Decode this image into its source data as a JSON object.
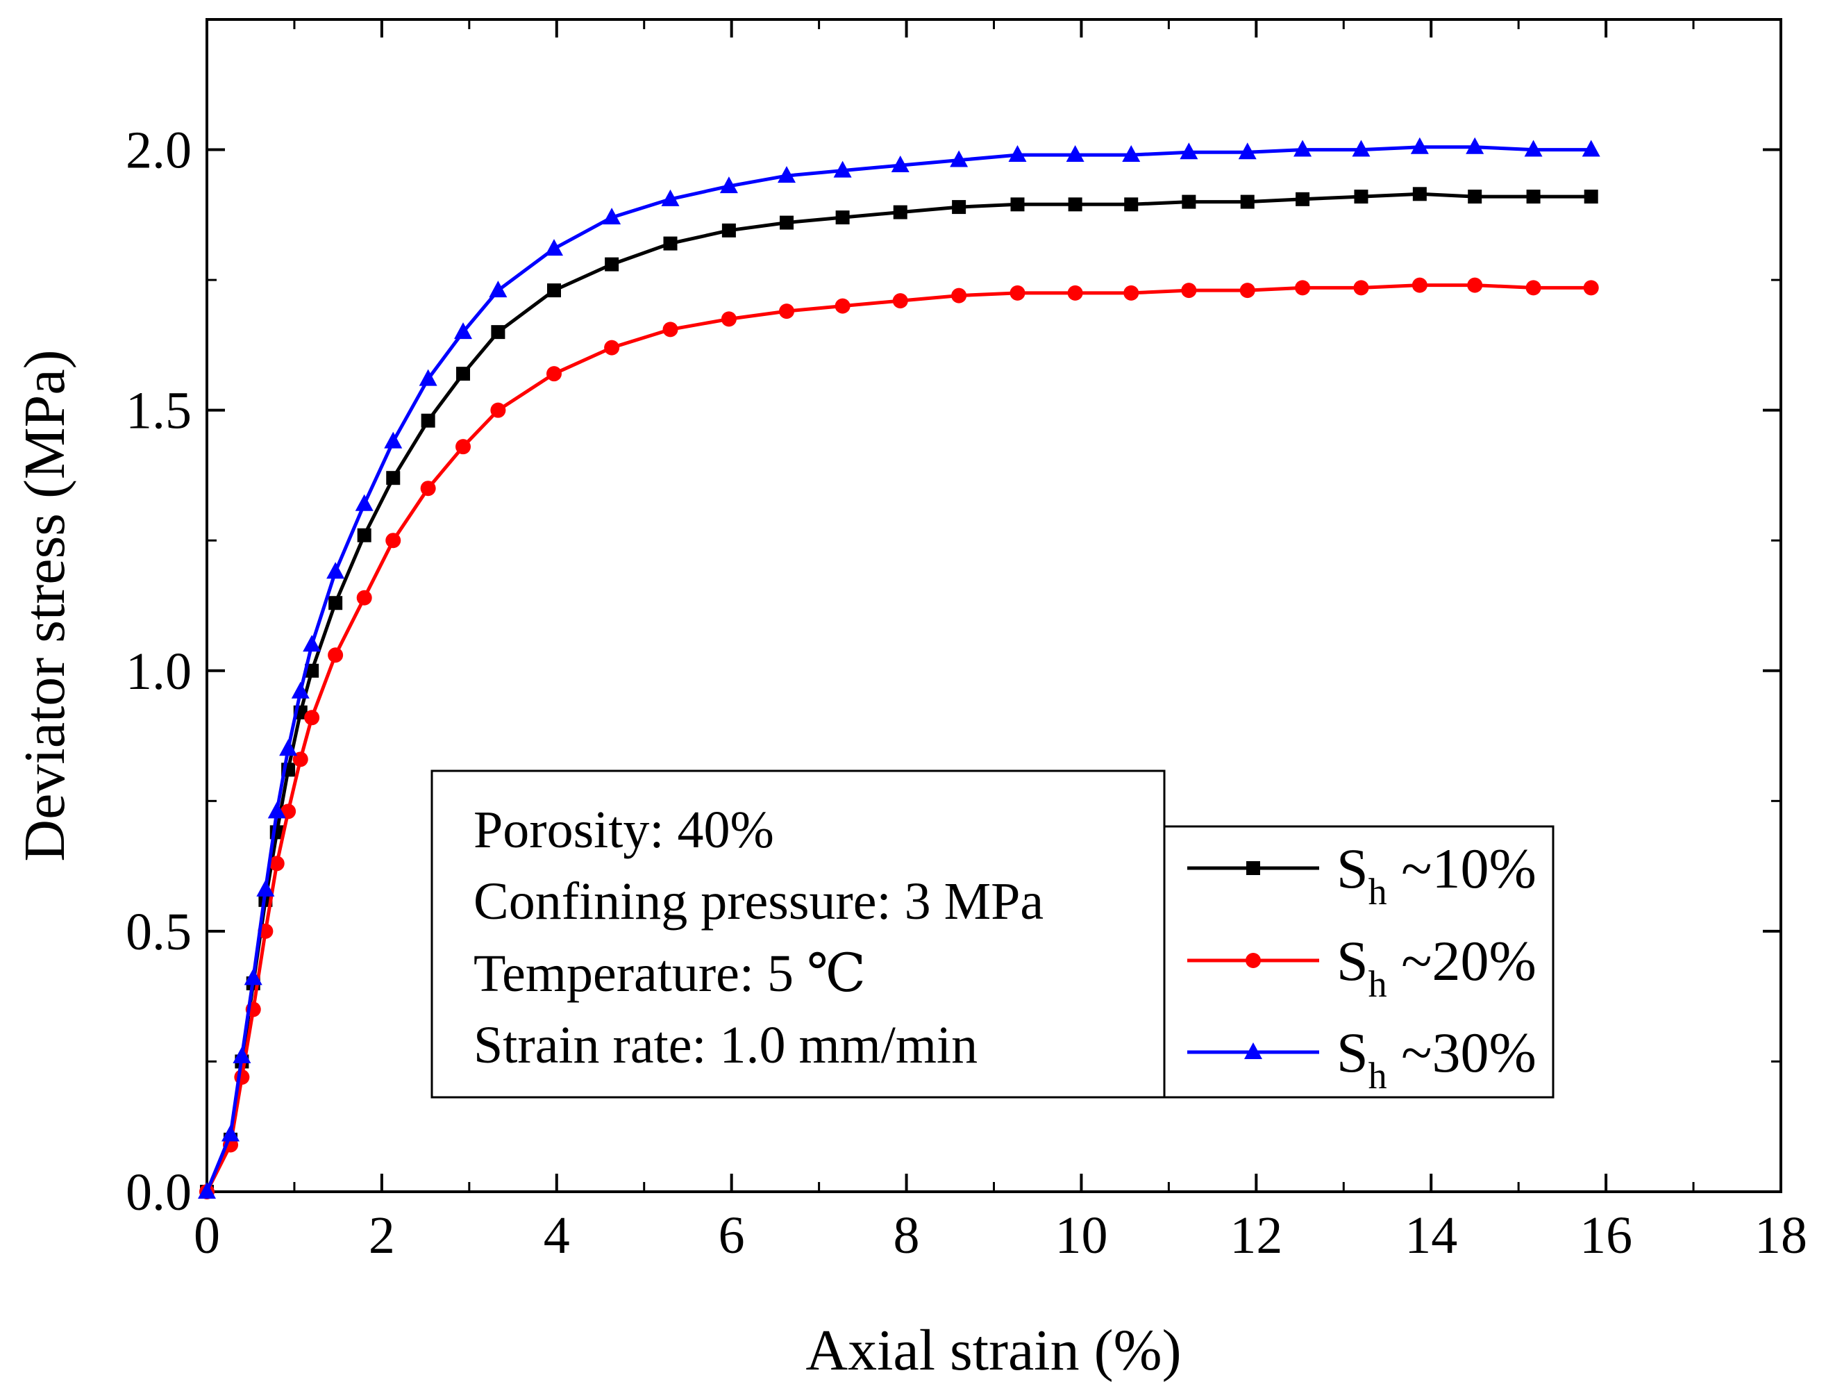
{
  "chart_data": {
    "type": "line",
    "xlabel": "Axial strain (%)",
    "ylabel": "Deviator stress (MPa)",
    "xlim": [
      0,
      18
    ],
    "ylim": [
      0,
      2.25
    ],
    "xticks": [
      0,
      2,
      4,
      6,
      8,
      10,
      12,
      14,
      16,
      18
    ],
    "xtick_labels": [
      "0",
      "2",
      "4",
      "6",
      "8",
      "10",
      "12",
      "14",
      "16",
      "18"
    ],
    "yticks": [
      0,
      0.5,
      1.0,
      1.5,
      2.0
    ],
    "ytick_labels": [
      "0.0",
      "0.5",
      "1.0",
      "1.5",
      "2.0"
    ],
    "grid": false,
    "legend_position": "right, below annotation",
    "annotation": [
      "Porosity: 40%",
      "Confining pressure: 3 MPa",
      "Temperature: 5 ℃",
      "Strain rate: 1.0 mm/min"
    ],
    "series": [
      {
        "name": "Sh ~10%",
        "label_main": "S",
        "label_sub": "h",
        "label_rest": " ~10%",
        "color": "#000000",
        "marker": "square",
        "x": [
          0,
          0.27,
          0.4,
          0.53,
          0.67,
          0.8,
          0.93,
          1.07,
          1.2,
          1.47,
          1.8,
          2.13,
          2.53,
          2.93,
          3.33,
          3.97,
          4.63,
          5.3,
          5.97,
          6.63,
          7.27,
          7.93,
          8.6,
          9.27,
          9.93,
          10.57,
          11.23,
          11.9,
          12.53,
          13.2,
          13.87,
          14.5,
          15.17,
          15.83
        ],
        "y": [
          0,
          0.1,
          0.25,
          0.4,
          0.56,
          0.69,
          0.81,
          0.92,
          1.0,
          1.13,
          1.26,
          1.37,
          1.48,
          1.57,
          1.65,
          1.73,
          1.78,
          1.82,
          1.845,
          1.86,
          1.87,
          1.88,
          1.89,
          1.895,
          1.895,
          1.895,
          1.9,
          1.9,
          1.905,
          1.91,
          1.915,
          1.91,
          1.91,
          1.91
        ]
      },
      {
        "name": "Sh ~20%",
        "label_main": "S",
        "label_sub": "h",
        "label_rest": " ~20%",
        "color": "#ff0000",
        "marker": "circle",
        "x": [
          0,
          0.27,
          0.4,
          0.53,
          0.67,
          0.8,
          0.93,
          1.07,
          1.2,
          1.47,
          1.8,
          2.13,
          2.53,
          2.93,
          3.33,
          3.97,
          4.63,
          5.3,
          5.97,
          6.63,
          7.27,
          7.93,
          8.6,
          9.27,
          9.93,
          10.57,
          11.23,
          11.9,
          12.53,
          13.2,
          13.87,
          14.5,
          15.17,
          15.83
        ],
        "y": [
          0,
          0.09,
          0.22,
          0.35,
          0.5,
          0.63,
          0.73,
          0.83,
          0.91,
          1.03,
          1.14,
          1.25,
          1.35,
          1.43,
          1.5,
          1.57,
          1.62,
          1.655,
          1.675,
          1.69,
          1.7,
          1.71,
          1.72,
          1.725,
          1.725,
          1.725,
          1.73,
          1.73,
          1.735,
          1.735,
          1.74,
          1.74,
          1.735,
          1.735
        ]
      },
      {
        "name": "Sh ~30%",
        "label_main": "S",
        "label_sub": "h",
        "label_rest": " ~30%",
        "color": "#0000ff",
        "marker": "triangle",
        "x": [
          0,
          0.27,
          0.4,
          0.53,
          0.67,
          0.8,
          0.93,
          1.07,
          1.2,
          1.47,
          1.8,
          2.13,
          2.53,
          2.93,
          3.33,
          3.97,
          4.63,
          5.3,
          5.97,
          6.63,
          7.27,
          7.93,
          8.6,
          9.27,
          9.93,
          10.57,
          11.23,
          11.9,
          12.53,
          13.2,
          13.87,
          14.5,
          15.17,
          15.83
        ],
        "y": [
          0,
          0.11,
          0.26,
          0.41,
          0.58,
          0.73,
          0.85,
          0.96,
          1.05,
          1.19,
          1.32,
          1.44,
          1.56,
          1.65,
          1.73,
          1.81,
          1.87,
          1.905,
          1.93,
          1.95,
          1.96,
          1.97,
          1.98,
          1.99,
          1.99,
          1.99,
          1.995,
          1.995,
          2.0,
          2.0,
          2.005,
          2.005,
          2.0,
          2.0
        ]
      }
    ]
  }
}
